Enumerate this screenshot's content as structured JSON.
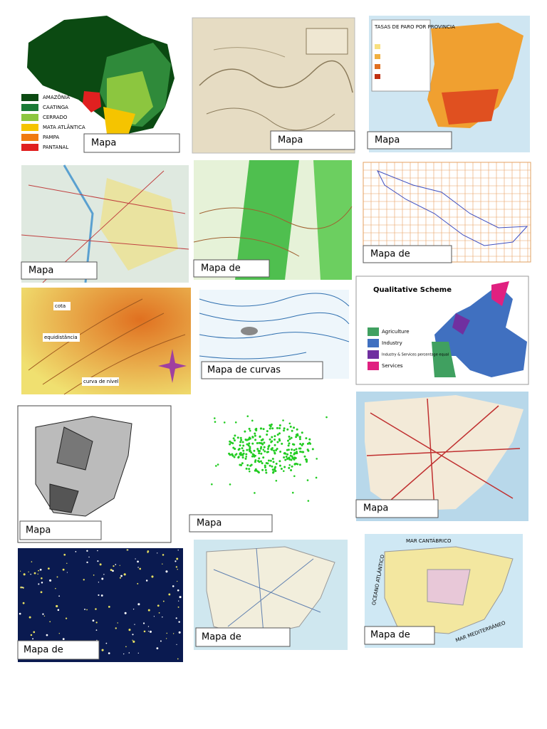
{
  "panels": [
    {
      "label": "Mapa",
      "legend": [
        "AMAZÔNIA",
        "CAATINGA",
        "CERRADO",
        "MATA ATLÂNTICA",
        "PAMPA",
        "PANTANAL"
      ]
    },
    {
      "label": "Mapa"
    },
    {
      "label": "Mapa",
      "title": "TASAS DE PARO POR PROVINCIA"
    },
    {
      "label": "Mapa"
    },
    {
      "label": "Mapa de"
    },
    {
      "label": "Mapa de"
    },
    {
      "notes": [
        "cota",
        "equidistância",
        "curva de nível"
      ]
    },
    {
      "label": "Mapa de curvas"
    },
    {
      "title": "Qualitative Scheme",
      "legend": [
        "Agriculture",
        "Industry",
        "Industry & Services percentage equal",
        "Services"
      ]
    },
    {
      "label": "Mapa"
    },
    {
      "label": "Mapa"
    },
    {
      "label": "Mapa"
    },
    {
      "label": "Mapa de"
    },
    {
      "label": "Mapa de"
    },
    {
      "label": "Mapa de",
      "seas": [
        "MAR CANTÁBRICO",
        "OCEANO ATLÁNTICO",
        "MAR MEDITERRÁNEO"
      ]
    }
  ]
}
